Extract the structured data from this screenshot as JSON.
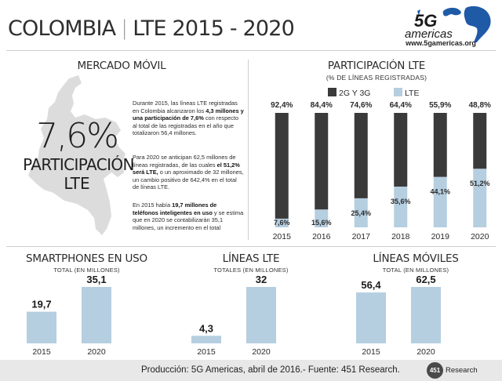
{
  "header": {
    "title_left": "COLOMBIA",
    "title_sep": "|",
    "title_right": "LTE 2015 - 2020",
    "logo_text": "5G americas",
    "logo_url": "www.5gamericas.org"
  },
  "mercado": {
    "title": "MERCADO MÓVIL",
    "big_value": "7,6%",
    "big_label_1": "PARTICIPACIÓN",
    "big_label_2": "LTE",
    "p1": [
      {
        "t": "Durante 2015, las líneas LTE registradas en Colombia alcanzaron los ",
        "b": false
      },
      {
        "t": "4,3 millones y una participación de 7,6%",
        "b": true
      },
      {
        "t": " con respecto al total de las registradas en el año que totalizaron 56,4 millones.",
        "b": false
      }
    ],
    "p2": [
      {
        "t": "Para 2020 se anticipan 62,5 millones de líneas registradas, de las cuales ",
        "b": false
      },
      {
        "t": "el 51,2% será LTE,",
        "b": true
      },
      {
        "t": " o un aproximado de 32 millones, un cambio positivo de 642,4% en el total de líneas LTE.",
        "b": false
      }
    ],
    "p3": [
      {
        "t": "En 2015 había ",
        "b": false
      },
      {
        "t": "19,7 millones de teléfonos inteligentes en uso",
        "b": true
      },
      {
        "t": " y se estima que en 2020 se contabilizarán 35,1 millones, un incremento en el total",
        "b": false
      }
    ]
  },
  "colors": {
    "dark": "#3a3a3a",
    "light": "#b5cfe0",
    "text": "#2b2b2b"
  },
  "chart_data": [
    {
      "type": "bar",
      "stacked": true,
      "title": "PARTICIPACIÓN LTE",
      "subtitle": "(% DE LÍNEAS REGISTRADAS)",
      "categories": [
        "2015",
        "2016",
        "2017",
        "2018",
        "2019",
        "2020"
      ],
      "series": [
        {
          "name": "2G Y 3G",
          "values": [
            92.4,
            84.4,
            74.6,
            64.4,
            55.9,
            48.8
          ],
          "labels": [
            "92,4%",
            "84,4%",
            "74,6%",
            "64,4%",
            "55,9%",
            "48,8%"
          ]
        },
        {
          "name": "LTE",
          "values": [
            7.6,
            15.6,
            25.4,
            35.6,
            44.1,
            51.2
          ],
          "labels": [
            "7,6%",
            "15,6%",
            "25,4%",
            "35,6%",
            "44,1%",
            "51,2%"
          ]
        }
      ],
      "ylim": [
        0,
        100
      ],
      "legend": "top-left"
    },
    {
      "type": "bar",
      "title": "SMARTPHONES EN  USO",
      "subtitle": "TOTAL (EN MILLONES)",
      "categories": [
        "2015",
        "2020"
      ],
      "values": [
        19.7,
        35.1
      ],
      "labels": [
        "19,7",
        "35,1"
      ]
    },
    {
      "type": "bar",
      "title": "LÍNEAS LTE",
      "subtitle": "TOTALES (EN MILLONES)",
      "categories": [
        "2015",
        "2020"
      ],
      "values": [
        4.3,
        32
      ],
      "labels": [
        "4,3",
        "32"
      ]
    },
    {
      "type": "bar",
      "title": "LÍNEAS MÓVILES",
      "subtitle": "TOTAL (EN MILLONES)",
      "categories": [
        "2015",
        "2020"
      ],
      "values": [
        56.4,
        62.5
      ],
      "labels": [
        "56,4",
        "62,5"
      ]
    }
  ],
  "footer": {
    "text": "Producción: 5G Americas, abril de 2016.- Fuente: 451 Research.",
    "logo_num": "451",
    "logo_word": "Research"
  }
}
